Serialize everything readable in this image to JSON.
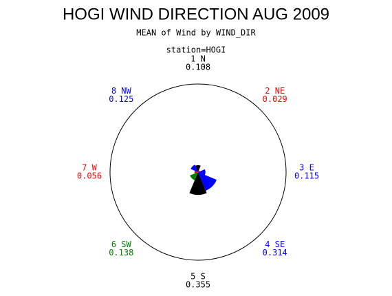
{
  "chart_data": {
    "type": "windrose",
    "title": "HOGI WIND DIRECTION AUG 2009",
    "subtitle": "MEAN of Wind by WIND_DIR",
    "station": "station=HOGI",
    "categories": [
      "1 N",
      "2 NE",
      "3 E",
      "4 SE",
      "5 S",
      "6 SW",
      "7 W",
      "8 NW"
    ],
    "values": [
      0.108,
      0.029,
      0.115,
      0.314,
      0.355,
      0.138,
      0.056,
      0.125
    ],
    "colors": [
      "#000000",
      "#ff0000",
      "#0000ff",
      "#0000ff",
      "#000000",
      "#008000",
      "#ff0000",
      "#0000ff"
    ]
  }
}
